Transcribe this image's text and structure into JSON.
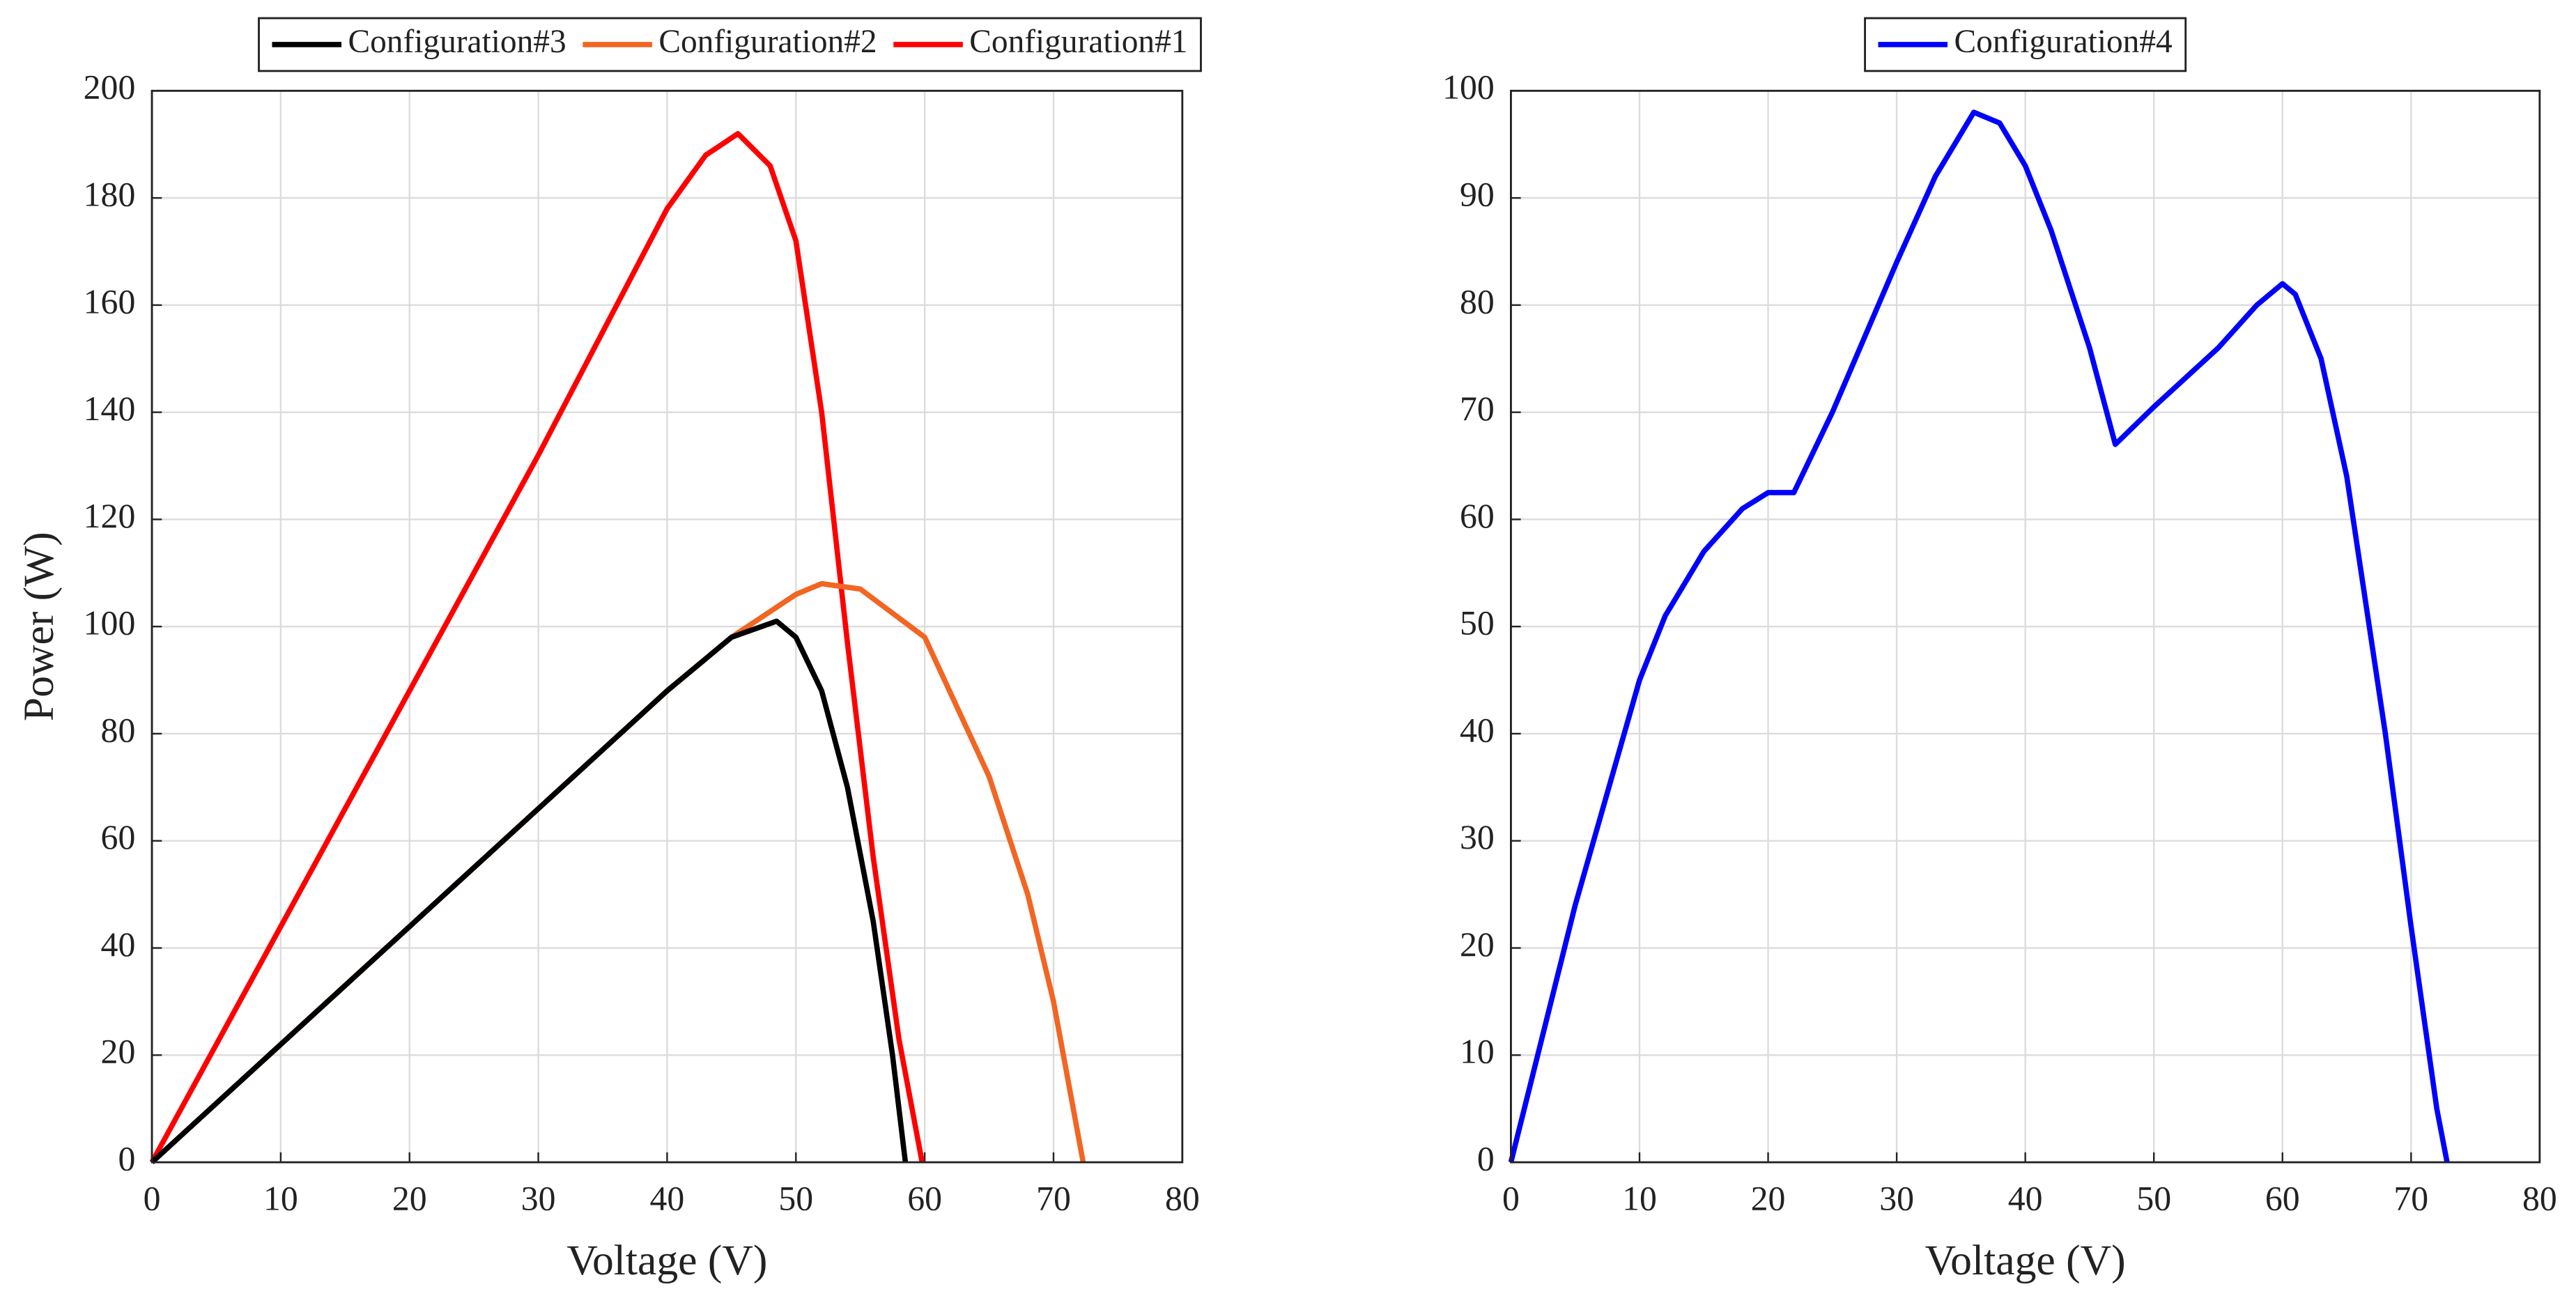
{
  "chart_data": [
    {
      "type": "line",
      "xlabel": "Voltage (V)",
      "ylabel": "Power (W)",
      "xlim": [
        0,
        80
      ],
      "xticks": [
        0,
        10,
        20,
        30,
        40,
        50,
        60,
        70,
        80
      ],
      "ylim": [
        0,
        200
      ],
      "yticks": [
        0,
        20,
        40,
        60,
        80,
        100,
        120,
        140,
        160,
        180,
        200
      ],
      "grid": true,
      "legend": "top",
      "series": [
        {
          "name": "Configuration#3",
          "color": "#000000",
          "x": [
            0,
            10,
            20,
            30,
            40,
            45,
            48.5,
            50,
            52,
            54,
            56,
            57.5,
            58.5
          ],
          "values": [
            0,
            22,
            44,
            66,
            88,
            98,
            101,
            98,
            88,
            70,
            45,
            20,
            0
          ]
        },
        {
          "name": "Configuration#2",
          "color": "#f26522",
          "x": [
            0,
            10,
            20,
            30,
            40,
            45,
            50,
            52,
            55,
            60,
            65,
            68,
            70,
            72.3
          ],
          "values": [
            0,
            22,
            44,
            66,
            88,
            98,
            106,
            108,
            107,
            98,
            72,
            50,
            30,
            0
          ]
        },
        {
          "name": "Configuration#1",
          "color": "#ff0000",
          "x": [
            0,
            5,
            10,
            15,
            20,
            25,
            30,
            35,
            40,
            43,
            45.5,
            48,
            50,
            52,
            54,
            56,
            58,
            59.8
          ],
          "values": [
            0,
            22,
            44,
            66,
            88,
            110,
            132,
            155,
            178,
            188,
            192,
            186,
            172,
            140,
            97,
            57,
            23,
            0
          ]
        }
      ]
    },
    {
      "type": "line",
      "xlabel": "Voltage (V)",
      "xlim": [
        0,
        80
      ],
      "xticks": [
        0,
        10,
        20,
        30,
        40,
        50,
        60,
        70,
        80
      ],
      "ylim": [
        0,
        100
      ],
      "yticks": [
        0,
        10,
        20,
        30,
        40,
        50,
        60,
        70,
        80,
        90,
        100
      ],
      "grid": true,
      "legend": "top",
      "series": [
        {
          "name": "Configuration#4",
          "color": "#0000ff",
          "x": [
            0,
            5,
            10,
            12,
            15,
            18,
            20,
            22,
            25,
            30,
            33,
            36,
            38,
            40,
            42,
            45,
            47,
            50,
            55,
            58,
            60,
            61,
            63,
            65,
            68,
            70,
            72,
            72.8
          ],
          "values": [
            0,
            24,
            45,
            51,
            57,
            61,
            62.5,
            62.5,
            70,
            84,
            92,
            98,
            97,
            93,
            87,
            76,
            67,
            70.5,
            76,
            80,
            82,
            81,
            75,
            64,
            40,
            22,
            5,
            0
          ]
        }
      ]
    }
  ]
}
